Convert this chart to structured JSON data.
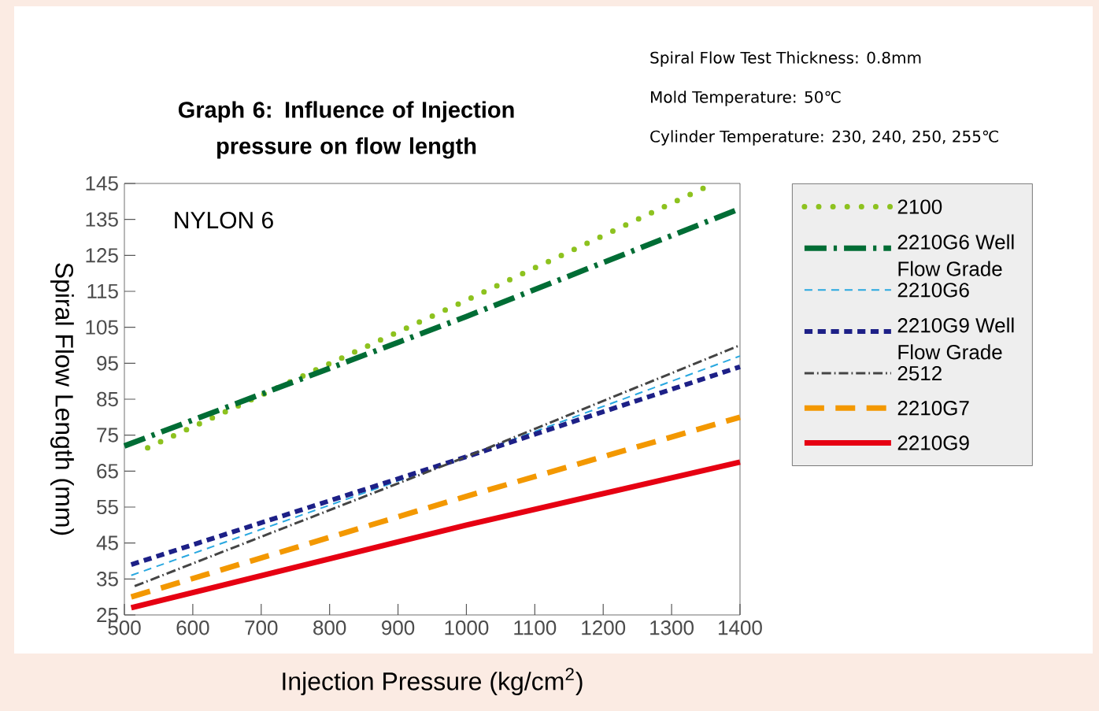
{
  "chart_data": {
    "type": "line",
    "title": "Graph 6: Influence of Injection pressure on flow length",
    "xlabel": "Injection Pressure (kg/cm$^{2}$)",
    "ylabel": "Spiral Flow Length (mm)",
    "annotations": [
      "Spiral Flow Test Thickness: 0.8mm",
      "Mold Temperature: 50℃",
      "Cylinder Temperature: 230, 240, 250, 255℃",
      "NYLON 6"
    ],
    "xlim": [
      500,
      1400
    ],
    "xticks": [
      500,
      600,
      700,
      800,
      900,
      1000,
      1100,
      1200,
      1300,
      1400
    ],
    "ylim": [
      25,
      145
    ],
    "yticks": [
      25,
      35,
      45,
      55,
      65,
      75,
      85,
      95,
      105,
      115,
      125,
      135,
      145
    ],
    "grid": false,
    "legend": "right",
    "marker": "none",
    "series": [
      {
        "name": "2100",
        "color": "#8dc21f",
        "line_style": "dotted",
        "x": [
          534,
          1000,
          1350
        ],
        "values": [
          71.5,
          112.5,
          144
        ]
      },
      {
        "name": "2210G6 Well Flow Grade",
        "color": "#006d35",
        "line_style": "dashdot",
        "x": [
          500,
          1000,
          1400
        ],
        "values": [
          72,
          108,
          138
        ]
      },
      {
        "name": "2210G6",
        "color": "#29a8e0",
        "line_style": "dashed",
        "x": [
          510,
          1000,
          1400
        ],
        "values": [
          36,
          69,
          97
        ]
      },
      {
        "name": "2210G9 Well Flow Grade",
        "color": "#1d2087",
        "line_style": "dotted",
        "x": [
          510,
          1000,
          1400
        ],
        "values": [
          39,
          69,
          94
        ]
      },
      {
        "name": "2512",
        "color": "#444444",
        "line_style": "dashdot",
        "x": [
          515,
          1000,
          1400
        ],
        "values": [
          33,
          69,
          100
        ]
      },
      {
        "name": "2210G7",
        "color": "#f39800",
        "line_style": "dashed",
        "x": [
          510,
          1000,
          1400
        ],
        "values": [
          30,
          58,
          80
        ]
      },
      {
        "name": "2210G9",
        "color": "#e60012",
        "line_style": "solid",
        "x": [
          510,
          1000,
          1400
        ],
        "values": [
          27,
          50,
          67.5
        ]
      }
    ]
  }
}
